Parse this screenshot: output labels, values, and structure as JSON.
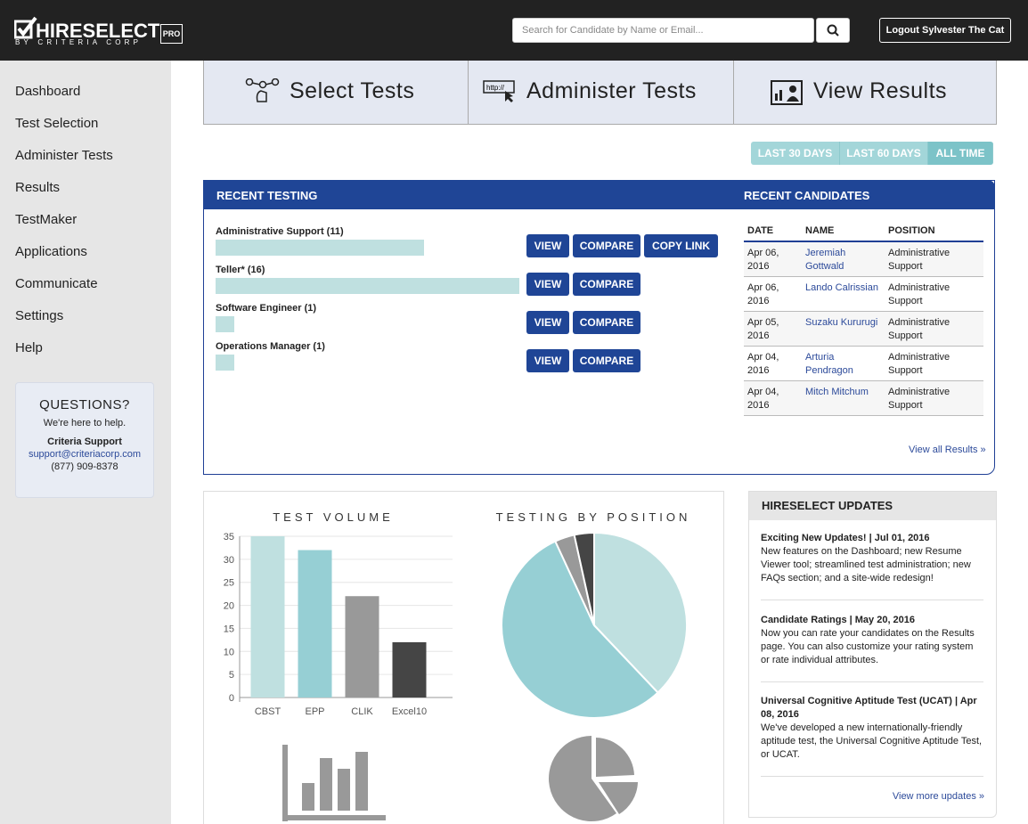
{
  "header": {
    "logo": "HIRESELECT",
    "logo_sub": "BY CRITERIA CORP",
    "badge": "PRO",
    "search_placeholder": "Search for Candidate by Name or Email...",
    "logout": "Logout Sylvester The Cat"
  },
  "nav": [
    "Dashboard",
    "Test Selection",
    "Administer Tests",
    "Results",
    "TestMaker",
    "Applications",
    "Communicate",
    "Settings",
    "Help"
  ],
  "support": {
    "title": "QUESTIONS?",
    "subtitle": "We're here to help.",
    "name": "Criteria Support",
    "email": "support@criteriacorp.com",
    "phone": "(877) 909-8378"
  },
  "tabs": [
    "Select Tests",
    "Administer Tests",
    "View Results"
  ],
  "date_filters": [
    "LAST 30 DAYS",
    "LAST 60 DAYS",
    "ALL TIME"
  ],
  "recent_testing": {
    "title": "RECENT TESTING",
    "tests": [
      {
        "label": "Administrative Support (11)",
        "count": 11,
        "actions": [
          "VIEW",
          "COMPARE",
          "COPY LINK"
        ]
      },
      {
        "label": "Teller* (16)",
        "count": 16,
        "actions": [
          "VIEW",
          "COMPARE"
        ]
      },
      {
        "label": "Software Engineer (1)",
        "count": 1,
        "actions": [
          "VIEW",
          "COMPARE"
        ]
      },
      {
        "label": "Operations Manager (1)",
        "count": 1,
        "actions": [
          "VIEW",
          "COMPARE"
        ]
      }
    ]
  },
  "recent_candidates": {
    "title": "RECENT CANDIDATES",
    "columns": [
      "DATE",
      "NAME",
      "POSITION"
    ],
    "rows": [
      [
        "Apr 06, 2016",
        "Jeremiah Gottwald",
        "Administrative Support"
      ],
      [
        "Apr 06, 2016",
        "Lando Calrissian",
        "Administrative Support"
      ],
      [
        "Apr 05, 2016",
        "Suzaku Kururugi",
        "Administrative Support"
      ],
      [
        "Apr 04, 2016",
        "Arturia Pendragon",
        "Administrative Support"
      ],
      [
        "Apr 04, 2016",
        "Mitch Mitchum",
        "Administrative Support"
      ]
    ],
    "link": "View all Results »"
  },
  "chart_data": [
    {
      "type": "bar",
      "title": "TEST VOLUME",
      "categories": [
        "CBST",
        "EPP",
        "CLIK",
        "Excel10"
      ],
      "values": [
        35,
        32,
        22,
        12
      ],
      "colors": [
        "#bfe0e0",
        "#96cfd4",
        "#999999",
        "#454545"
      ],
      "ylim": [
        0,
        35
      ],
      "yticks": [
        0,
        5,
        10,
        15,
        20,
        25,
        30,
        35
      ],
      "grid": true
    },
    {
      "type": "pie",
      "title": "TESTING BY POSITION",
      "values": [
        11,
        16,
        1,
        1
      ],
      "colors": [
        "#bfe0e0",
        "#96cfd4",
        "#999999",
        "#454545"
      ]
    }
  ],
  "updates": {
    "title": "HIRESELECT UPDATES",
    "items": [
      {
        "heading": "Exciting New Updates! | Jul 01, 2016",
        "body": "New features on the Dashboard; new Resume Viewer tool; streamlined test administration; new FAQs section; and a site-wide redesign!"
      },
      {
        "heading": "Candidate Ratings | May 20, 2016",
        "body": "Now you can rate your candidates on the Results page. You can also customize your rating system or rate individual attributes."
      },
      {
        "heading": "Universal Cognitive Aptitude Test (UCAT) | Apr 08, 2016",
        "body": "We've developed a new internationally-friendly aptitude test, the Universal Cognitive Aptitude Test, or UCAT."
      }
    ],
    "link": "View more updates »"
  }
}
